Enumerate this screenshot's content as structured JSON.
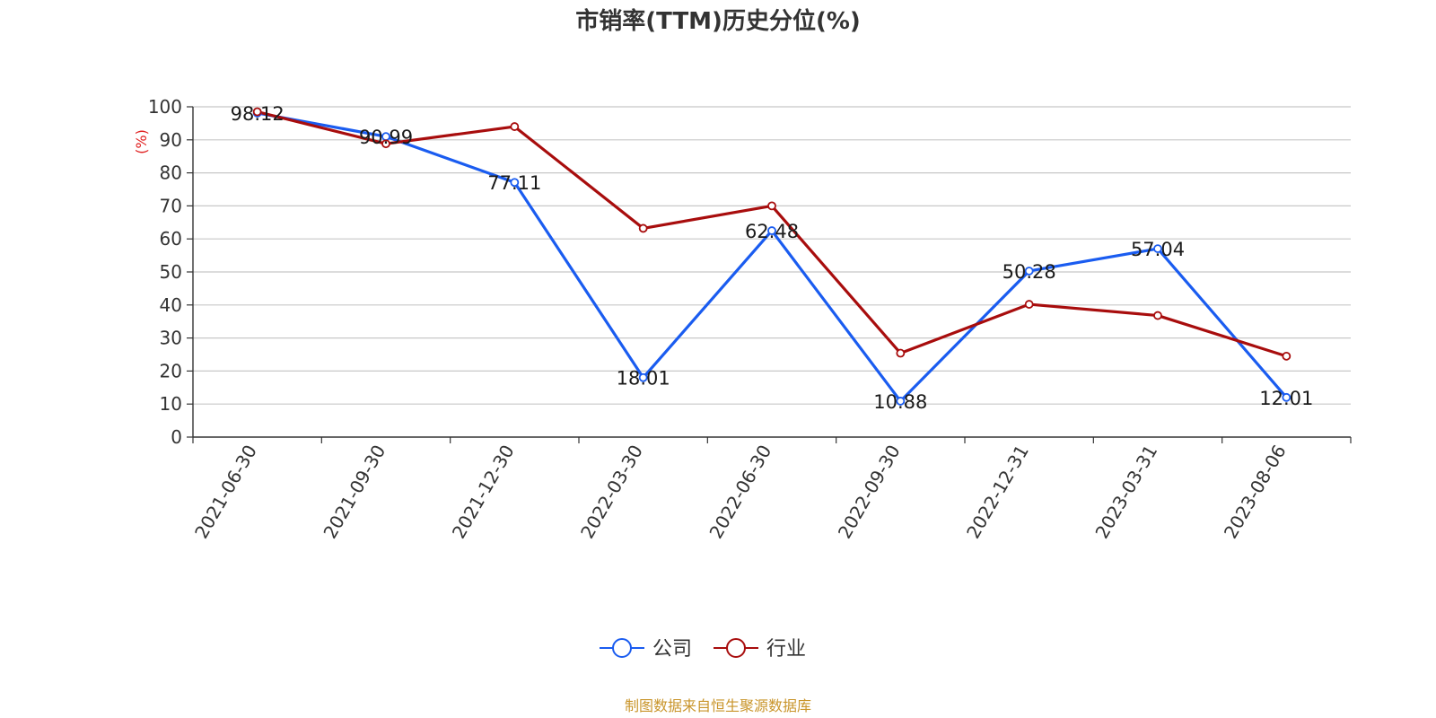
{
  "chart_data": {
    "type": "line",
    "title": "市销率(TTM)历史分位(%)",
    "ylabel": "(%)",
    "xlabel": "",
    "categories": [
      "2021-06-30",
      "2021-09-30",
      "2021-12-30",
      "2022-03-30",
      "2022-06-30",
      "2022-09-30",
      "2022-12-31",
      "2023-03-31",
      "2023-08-06"
    ],
    "ylim": [
      0,
      100
    ],
    "yticks": [
      0,
      10,
      20,
      30,
      40,
      50,
      60,
      70,
      80,
      90,
      100
    ],
    "grid": true,
    "legend_position": "bottom",
    "series": [
      {
        "name": "公司",
        "color": "#1a5cf0",
        "values": [
          98.12,
          90.99,
          77.11,
          18.01,
          62.48,
          10.88,
          50.28,
          57.04,
          12.01
        ],
        "labels": [
          "98.12",
          "90.99",
          "77.11",
          "18.01",
          "62.48",
          "10.88",
          "50.28",
          "57.04",
          "12.01"
        ]
      },
      {
        "name": "行业",
        "color": "#a80d0d",
        "values": [
          98.5,
          88.8,
          94.0,
          63.2,
          70.0,
          25.4,
          40.2,
          36.8,
          24.5
        ]
      }
    ],
    "ylabel_color": "#e02020"
  },
  "source": {
    "text": "制图数据来自恒生聚源数据库",
    "color": "#c9952b"
  }
}
